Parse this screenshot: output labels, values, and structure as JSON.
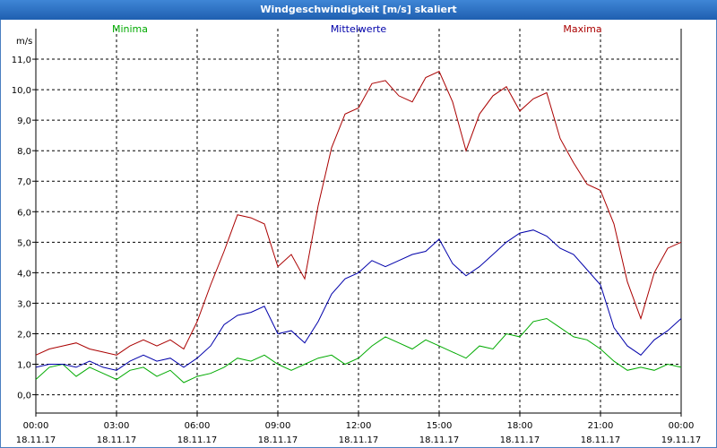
{
  "window": {
    "title": "Windgeschwindigkeit [m/s] skaliert"
  },
  "chart_data": {
    "type": "line",
    "title": "Windgeschwindigkeit [m/s] skaliert",
    "ylabel": "m/s",
    "xlabel": "",
    "ylim": [
      -0.6,
      12.0
    ],
    "yticks": [
      0,
      1,
      2,
      3,
      4,
      5,
      6,
      7,
      8,
      9,
      10,
      11
    ],
    "ytick_labels": [
      "0,0",
      "1,0",
      "2,0",
      "3,0",
      "4,0",
      "5,0",
      "6,0",
      "7,0",
      "8,0",
      "9,0",
      "10,0",
      "11,0"
    ],
    "xlim": [
      0,
      24
    ],
    "xticks": [
      {
        "time": "00:00",
        "date": "18.11.17"
      },
      {
        "time": "03:00",
        "date": "18.11.17"
      },
      {
        "time": "06:00",
        "date": "18.11.17"
      },
      {
        "time": "09:00",
        "date": "18.11.17"
      },
      {
        "time": "12:00",
        "date": "18.11.17"
      },
      {
        "time": "15:00",
        "date": "18.11.17"
      },
      {
        "time": "18:00",
        "date": "18.11.17"
      },
      {
        "time": "21:00",
        "date": "18.11.17"
      },
      {
        "time": "00:00",
        "date": "19.11.17"
      }
    ],
    "grid": true,
    "legend_position": "top",
    "x_hours": [
      0,
      0.5,
      1,
      1.5,
      2,
      2.5,
      3,
      3.5,
      4,
      4.5,
      5,
      5.5,
      6,
      6.5,
      7,
      7.5,
      8,
      8.5,
      9,
      9.5,
      10,
      10.5,
      11,
      11.5,
      12,
      12.5,
      13,
      13.5,
      14,
      14.5,
      15,
      15.5,
      16,
      16.5,
      17,
      17.5,
      18,
      18.5,
      19,
      19.5,
      20,
      20.5,
      21,
      21.5,
      22,
      22.5,
      23,
      23.5,
      24
    ],
    "series": [
      {
        "name": "Minima",
        "color": "#00aa00",
        "values": [
          0.5,
          0.9,
          1.0,
          0.6,
          0.9,
          0.7,
          0.5,
          0.8,
          0.9,
          0.6,
          0.8,
          0.4,
          0.6,
          0.7,
          0.9,
          1.2,
          1.1,
          1.3,
          1.0,
          0.8,
          1.0,
          1.2,
          1.3,
          1.0,
          1.2,
          1.6,
          1.9,
          1.7,
          1.5,
          1.8,
          1.6,
          1.4,
          1.2,
          1.6,
          1.5,
          2.0,
          1.9,
          2.4,
          2.5,
          2.2,
          1.9,
          1.8,
          1.5,
          1.1,
          0.8,
          0.9,
          0.8,
          1.0,
          0.9
        ]
      },
      {
        "name": "Mittelwerte",
        "color": "#0000aa",
        "values": [
          0.9,
          1.0,
          1.0,
          0.9,
          1.1,
          0.9,
          0.8,
          1.1,
          1.3,
          1.1,
          1.2,
          0.9,
          1.2,
          1.6,
          2.3,
          2.6,
          2.7,
          2.9,
          2.0,
          2.1,
          1.7,
          2.4,
          3.3,
          3.8,
          4.0,
          4.4,
          4.2,
          4.4,
          4.6,
          4.7,
          5.1,
          4.3,
          3.9,
          4.2,
          4.6,
          5.0,
          5.3,
          5.4,
          5.2,
          4.8,
          4.6,
          4.1,
          3.6,
          2.2,
          1.6,
          1.3,
          1.8,
          2.1,
          2.5
        ]
      },
      {
        "name": "Maxima",
        "color": "#aa0000",
        "values": [
          1.3,
          1.5,
          1.6,
          1.7,
          1.5,
          1.4,
          1.3,
          1.6,
          1.8,
          1.6,
          1.8,
          1.5,
          2.4,
          3.6,
          4.7,
          5.9,
          5.8,
          5.6,
          4.2,
          4.6,
          3.8,
          6.2,
          8.1,
          9.2,
          9.4,
          10.2,
          10.3,
          9.8,
          9.6,
          10.4,
          10.6,
          9.6,
          8.0,
          9.2,
          9.8,
          10.1,
          9.3,
          9.7,
          9.9,
          8.4,
          7.6,
          6.9,
          6.7,
          5.6,
          3.7,
          2.5,
          4.0,
          4.8,
          5.0
        ]
      }
    ]
  }
}
